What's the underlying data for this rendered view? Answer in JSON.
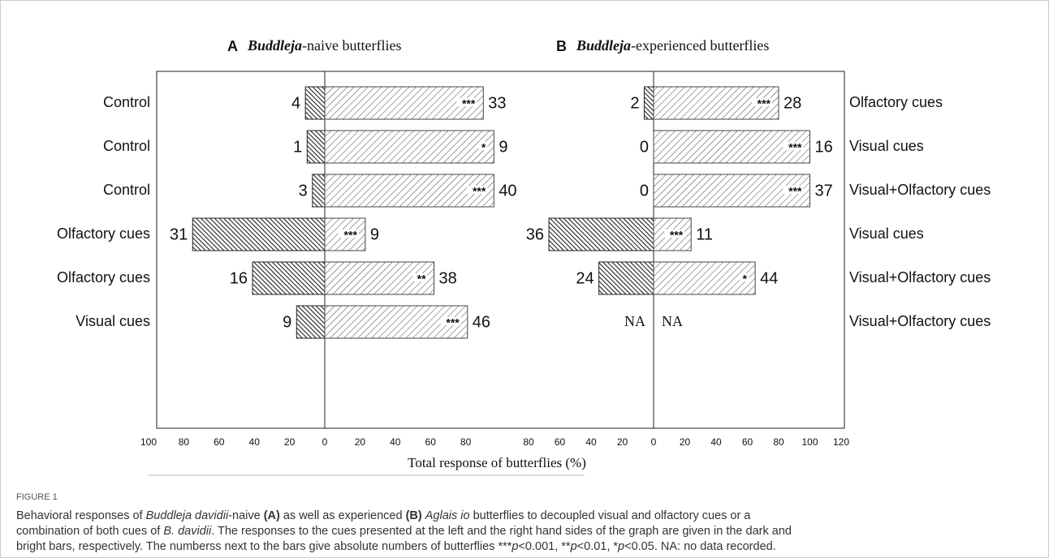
{
  "chart_data": [
    {
      "type": "diverging_bar",
      "panel": "A",
      "title_italic": "Buddleja",
      "title": "-naive butterflies",
      "left_values": [
        11,
        10,
        7,
        75,
        41,
        16
      ],
      "right_values": [
        90,
        96,
        96,
        23,
        62,
        81
      ],
      "left_counts": [
        4,
        1,
        3,
        31,
        16,
        9
      ],
      "right_counts": [
        33,
        9,
        40,
        9,
        38,
        46
      ],
      "significance": [
        "***",
        "*",
        "***",
        "***",
        "**",
        "***"
      ],
      "xlim": [
        -100,
        100
      ],
      "xticks": [
        {
          "value": -100,
          "label": "100"
        },
        {
          "value": -80,
          "label": "80"
        },
        {
          "value": -60,
          "label": "60"
        },
        {
          "value": -40,
          "label": "40"
        },
        {
          "value": -20,
          "label": "20"
        },
        0,
        20,
        40,
        60,
        80
      ],
      "left_color": "#222222",
      "right_color": "#444444"
    },
    {
      "type": "diverging_bar",
      "panel": "B",
      "title_italic": "Buddleja",
      "title": "-experienced butterflies",
      "left_values": [
        6,
        0,
        0,
        67,
        35,
        null
      ],
      "right_values": [
        80,
        100,
        100,
        24,
        65,
        null
      ],
      "left_counts": [
        2,
        0,
        0,
        36,
        24,
        "NA"
      ],
      "right_counts": [
        28,
        16,
        37,
        11,
        44,
        "NA"
      ],
      "significance": [
        "***",
        "***",
        "***",
        "***",
        "*",
        null
      ],
      "xlim": [
        -80,
        120
      ],
      "xticks": [
        {
          "value": -80,
          "label": "80"
        },
        {
          "value": -60,
          "label": "60"
        },
        {
          "value": -40,
          "label": "40"
        },
        {
          "value": -20,
          "label": "20"
        },
        0,
        20,
        40,
        60,
        80,
        100,
        120
      ],
      "left_color": "#222222",
      "right_color": "#444444"
    }
  ],
  "left_cues": [
    "Control",
    "Control",
    "Control",
    "Olfactory cues",
    "Olfactory cues",
    "Visual cues"
  ],
  "right_cues": [
    "Olfactory cues",
    "Visual cues",
    "Visual+Olfactory cues",
    "Visual cues",
    "Visual+Olfactory cues",
    "Visual+Olfactory cues"
  ],
  "xlabel": "Total response of butterflies (%)",
  "figure_label": "FIGURE 1",
  "caption": [
    [
      {
        "text": "Behavioral responses of "
      },
      {
        "text": "Buddleja davidii",
        "style": "italic"
      },
      {
        "text": "-naive "
      },
      {
        "text": "(A)",
        "style": "bold"
      },
      {
        "text": " as well as experienced "
      },
      {
        "text": "(B)",
        "style": "bold"
      },
      {
        "text": " "
      },
      {
        "text": "Aglais io",
        "style": "italic"
      },
      {
        "text": " butterflies to decoupled visual and olfactory cues or a"
      }
    ],
    [
      {
        "text": "combination of both cues of "
      },
      {
        "text": "B. davidii",
        "style": "italic"
      },
      {
        "text": ". The responses to the cues presented at the left and the right hand sides of the graph are given in the dark and"
      }
    ],
    [
      {
        "text": "bright bars, respectively. The numberss next to the bars give absolute numbers of butterflies ***"
      },
      {
        "text": "p",
        "style": "italic"
      },
      {
        "text": "<0.001, **"
      },
      {
        "text": "p",
        "style": "italic"
      },
      {
        "text": "<0.01, *"
      },
      {
        "text": "p",
        "style": "italic"
      },
      {
        "text": "<0.05. NA: no data recorded."
      }
    ]
  ]
}
